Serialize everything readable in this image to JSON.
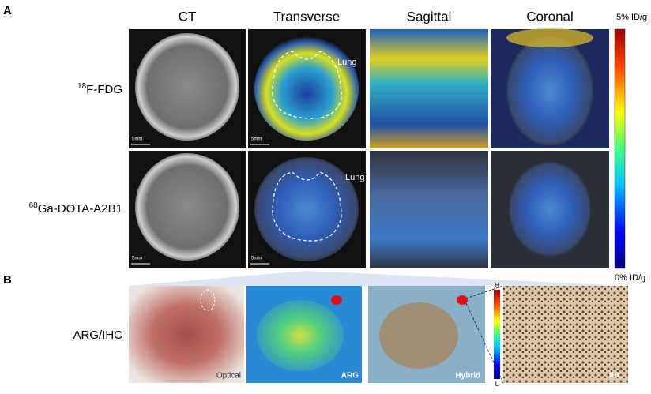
{
  "panel_a": {
    "label": "A",
    "columns": [
      "CT",
      "Transverse",
      "Sagittal",
      "Coronal"
    ],
    "rows": [
      {
        "isotope": "18",
        "name": "F-FDG"
      },
      {
        "isotope": "68",
        "name": "Ga-DOTA-A2B1"
      }
    ],
    "organ_label": "Lung",
    "scale_bar": "5mm",
    "colorbar": {
      "max_label": "5% ID/g",
      "min_label": "0% ID/g"
    }
  },
  "panel_b": {
    "label": "B",
    "row_label": "ARG/IHC",
    "images": [
      "Optical",
      "ARG",
      "Hybrid",
      "IHC"
    ],
    "colorbar": {
      "high": "H",
      "low": "L"
    }
  }
}
